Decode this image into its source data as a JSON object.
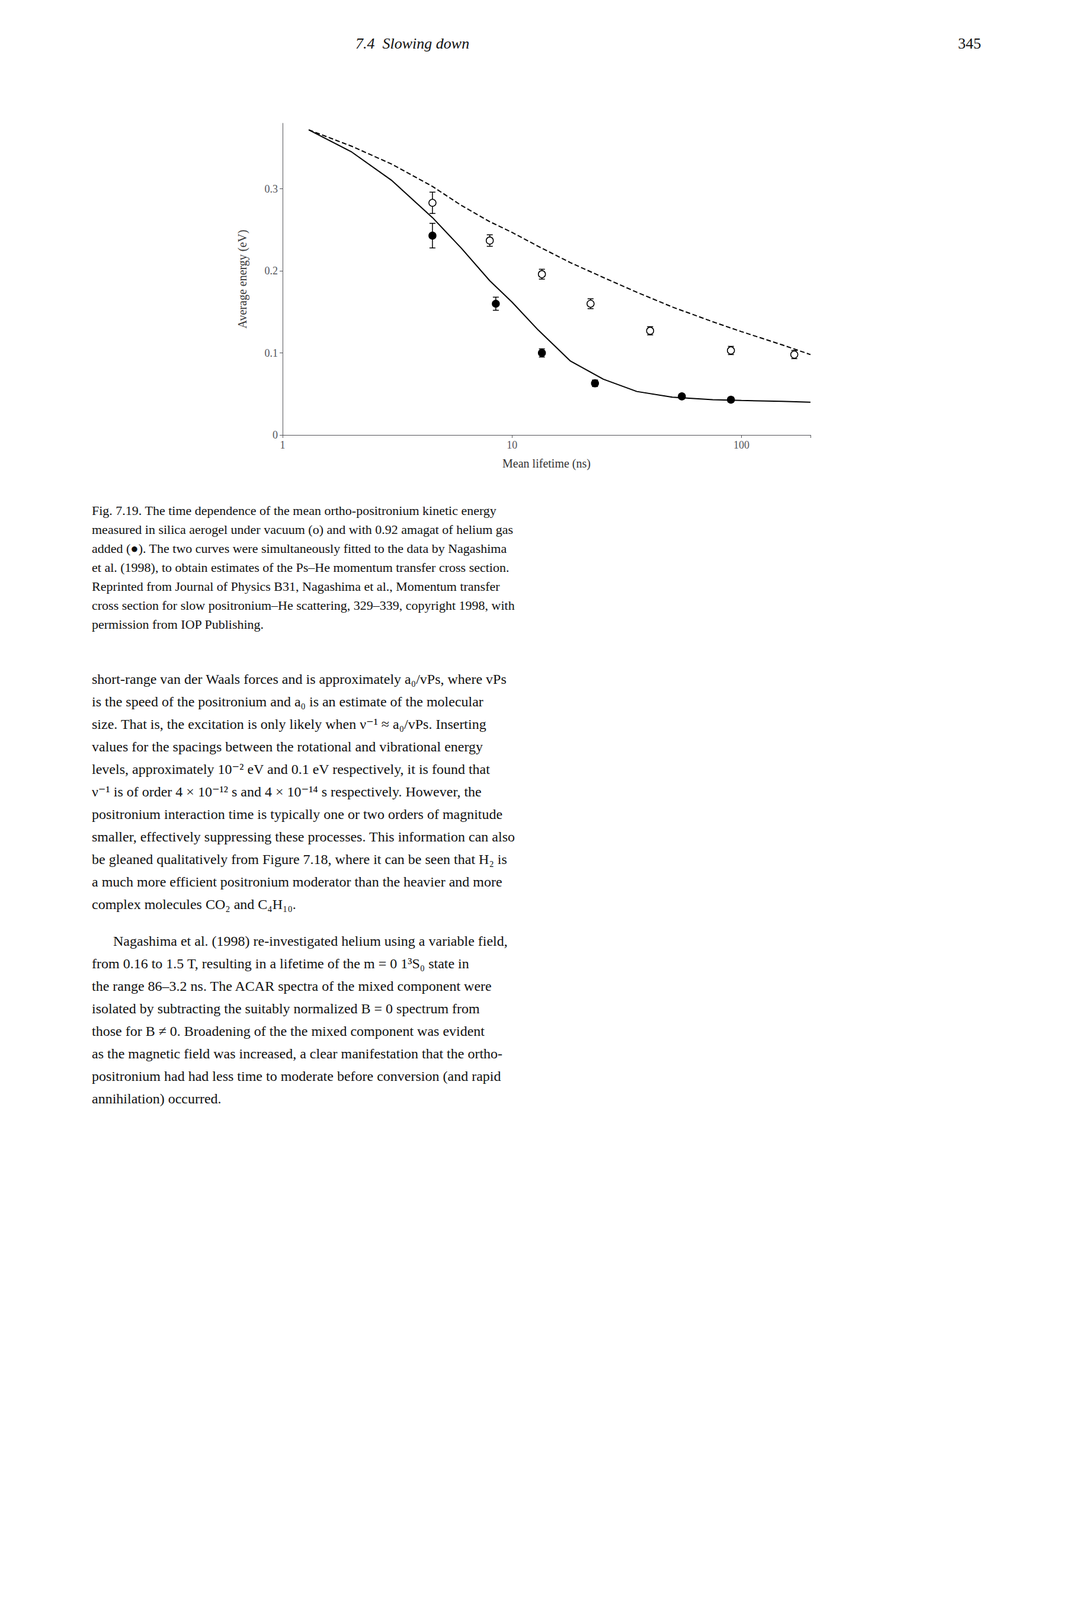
{
  "chart_data": {
    "type": "line",
    "xlabel": "Mean lifetime (ns)",
    "ylabel": "Average energy (eV)",
    "log": "x",
    "xlim": [
      1,
      200
    ],
    "xticks": [
      1,
      10,
      100
    ],
    "ylim": [
      0,
      0.38
    ],
    "yticks": [
      0,
      0.1,
      0.2,
      0.3
    ],
    "grid": false,
    "series": [
      {
        "type": "line",
        "line_style": "dashed",
        "color": "#000000",
        "x": [
          1.3,
          2.0,
          3.0,
          4.5,
          6.0,
          8.0,
          10.0,
          13.0,
          18.0,
          25.0,
          35.0,
          50.0,
          75.0,
          100.0,
          150.0,
          200.0
        ],
        "values": [
          0.372,
          0.352,
          0.33,
          0.303,
          0.28,
          0.26,
          0.247,
          0.23,
          0.21,
          0.192,
          0.174,
          0.156,
          0.138,
          0.126,
          0.11,
          0.098
        ]
      },
      {
        "type": "line",
        "line_style": "solid",
        "color": "#000000",
        "x": [
          1.3,
          2.0,
          3.0,
          4.5,
          6.0,
          8.0,
          10.0,
          13.0,
          18.0,
          25.0,
          35.0,
          50.0,
          75.0,
          100.0,
          150.0,
          200.0
        ],
        "values": [
          0.372,
          0.345,
          0.31,
          0.265,
          0.228,
          0.188,
          0.162,
          0.128,
          0.09,
          0.068,
          0.053,
          0.046,
          0.043,
          0.042,
          0.041,
          0.04
        ]
      },
      {
        "type": "scatter",
        "marker": "open",
        "color": "#000000",
        "x": [
          4.5,
          8.0,
          13.5,
          22.0,
          40.0,
          90.0,
          170.0
        ],
        "values": [
          0.283,
          0.237,
          0.196,
          0.16,
          0.127,
          0.103,
          0.098
        ],
        "yerr": [
          0.013,
          0.007,
          0.006,
          0.006,
          0.005,
          0.005,
          0.005
        ]
      },
      {
        "type": "scatter",
        "marker": "filled",
        "color": "#000000",
        "x": [
          4.5,
          8.5,
          13.5,
          23.0,
          55.0,
          90.0
        ],
        "values": [
          0.243,
          0.16,
          0.1,
          0.063,
          0.047,
          0.043
        ],
        "yerr": [
          0.015,
          0.008,
          0.005,
          0.004,
          0.003,
          0.003
        ]
      }
    ],
    "annotations": [
      [
        "7.4  Slowing down",
        "345"
      ],
      [
        "Fig. 7.19. The time dependence of the mean ortho-positronium kinetic energy",
        "measured in silica aerogel under vacuum (o) and with 0.92 amagat of helium gas",
        "added (●). The two curves were simultaneously fitted to the data by Nagashima",
        "et al. (1998), to obtain estimates of the Ps–He momentum transfer cross section.",
        "Reprinted from Journal of Physics B31, Nagashima et al., Momentum transfer",
        "cross section for slow positronium–He scattering, 329–339, copyright 1998, with",
        "permission from IOP Publishing."
      ],
      [
        "short-range van der Waals forces and is approximately a₀/vPs, where vPs",
        "is the speed of the positronium and a₀ is an estimate of the molecular",
        "size. That is, the excitation is only likely when ν⁻¹ ≈ a₀/vPs. Inserting",
        "values for the spacings between the rotational and vibrational energy",
        "levels, approximately 10⁻² eV and 0.1 eV respectively, it is found that",
        "ν⁻¹ is of order 4 × 10⁻¹² s and 4 × 10⁻¹⁴ s respectively. However, the",
        "positronium interaction time is typically one or two orders of magnitude",
        "smaller, effectively suppressing these processes. This information can also",
        "be gleaned qualitatively from Figure 7.18, where it can be seen that H₂ is",
        "a much more efficient positronium moderator than the heavier and more",
        "complex molecules CO₂ and C₄H₁₀."
      ],
      [
        "Nagashima et al. (1998) re-investigated helium using a variable field,",
        "from 0.16 to 1.5 T, resulting in a lifetime of the m = 0 1³S₀ state in",
        "the range 86–3.2 ns. The ACAR spectra of the mixed component were",
        "isolated by subtracting the suitably normalized B = 0 spectrum from",
        "those for B ≠ 0. Broadening of the the mixed component was evident",
        "as the magnetic field was increased, a clear manifestation that the ortho-",
        "positronium had had less time to moderate before conversion (and rapid",
        "annihilation) occurred."
      ]
    ]
  }
}
